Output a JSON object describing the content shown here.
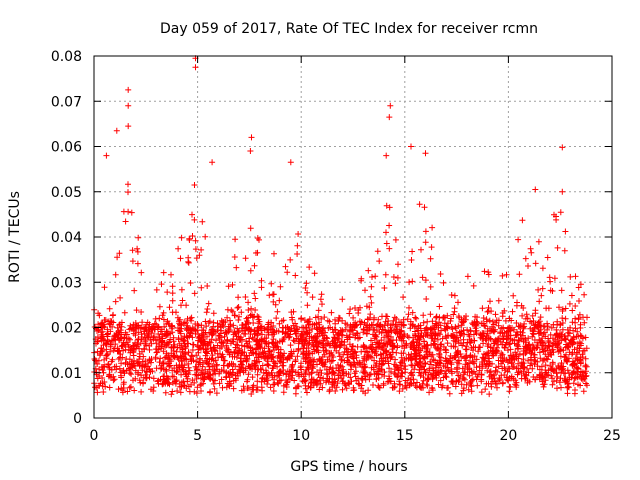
{
  "chart_data": {
    "type": "scatter",
    "title": "Day 059 of 2017, Rate Of TEC Index for receiver rcmn",
    "xlabel": "GPS time / hours",
    "ylabel": "ROTI / TECUs",
    "xlim": [
      0,
      25
    ],
    "ylim": [
      0,
      0.08
    ],
    "x_ticks": [
      "0",
      "5",
      "10",
      "15",
      "20",
      "25"
    ],
    "y_ticks": [
      "0",
      "0.01",
      "0.02",
      "0.03",
      "0.04",
      "0.05",
      "0.06",
      "0.07",
      "0.08"
    ],
    "grid": true,
    "legend": "none",
    "marker": "+",
    "series": [
      {
        "color": "#ff0000",
        "x_range": [
          0,
          23.8
        ],
        "typical_y_range": [
          0.005,
          0.025
        ],
        "notable_points": [
          {
            "x": 0.6,
            "y": 0.058
          },
          {
            "x": 1.1,
            "y": 0.0635
          },
          {
            "x": 1.65,
            "y": 0.0725
          },
          {
            "x": 1.65,
            "y": 0.069
          },
          {
            "x": 1.65,
            "y": 0.0645
          },
          {
            "x": 4.9,
            "y": 0.0795
          },
          {
            "x": 4.9,
            "y": 0.0775
          },
          {
            "x": 4.85,
            "y": 0.0515
          },
          {
            "x": 5.7,
            "y": 0.0565
          },
          {
            "x": 7.6,
            "y": 0.062
          },
          {
            "x": 7.55,
            "y": 0.059
          },
          {
            "x": 9.5,
            "y": 0.0565
          },
          {
            "x": 14.3,
            "y": 0.069
          },
          {
            "x": 14.25,
            "y": 0.0665
          },
          {
            "x": 14.1,
            "y": 0.058
          },
          {
            "x": 15.3,
            "y": 0.06
          },
          {
            "x": 16.0,
            "y": 0.0585
          },
          {
            "x": 21.3,
            "y": 0.0505
          },
          {
            "x": 22.6,
            "y": 0.0598
          },
          {
            "x": 22.6,
            "y": 0.05
          }
        ],
        "active_periods": [
          {
            "center": 1.5,
            "upper": 0.05
          },
          {
            "center": 4.8,
            "upper": 0.045
          },
          {
            "center": 7.8,
            "upper": 0.045
          },
          {
            "center": 9.5,
            "upper": 0.045
          },
          {
            "center": 14.2,
            "upper": 0.045
          },
          {
            "center": 16.0,
            "upper": 0.05
          },
          {
            "center": 21.0,
            "upper": 0.045
          },
          {
            "center": 22.5,
            "upper": 0.045
          }
        ]
      }
    ]
  }
}
